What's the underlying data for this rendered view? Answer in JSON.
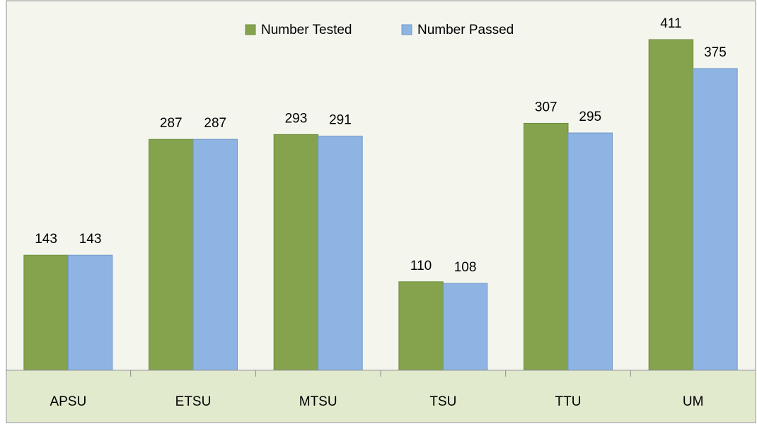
{
  "chart_data": {
    "type": "bar",
    "categories": [
      "APSU",
      "ETSU",
      "MTSU",
      "TSU",
      "TTU",
      "UM"
    ],
    "series": [
      {
        "name": "Number Tested",
        "color": "#84a34c",
        "values": [
          143,
          287,
          293,
          110,
          307,
          411
        ]
      },
      {
        "name": "Number Passed",
        "color": "#8eb4e3",
        "values": [
          143,
          287,
          291,
          108,
          295,
          375
        ]
      }
    ],
    "legend": "top"
  }
}
